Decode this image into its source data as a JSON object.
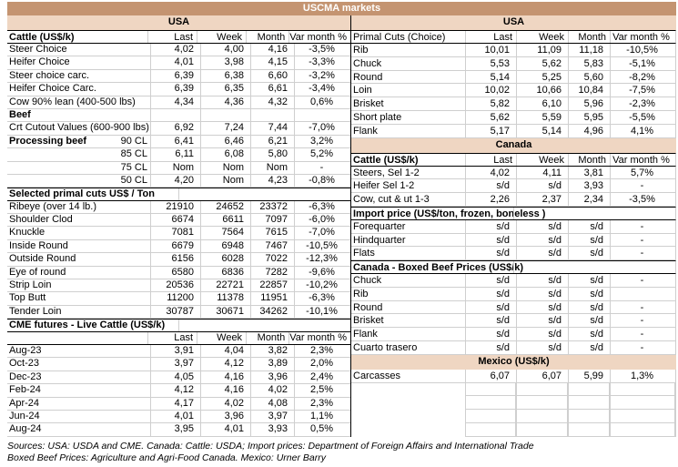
{
  "title": "USCMA markets",
  "colors": {
    "title_bg": "#C49471",
    "band_bg": "#EFD6C2",
    "grid": "#CFCFCF",
    "divider": "#000000"
  },
  "columns": [
    "Last",
    "Week",
    "Month",
    "Var month %"
  ],
  "left": {
    "rows": [
      {
        "t": "band",
        "label": "USA"
      },
      {
        "t": "colhead",
        "label": "Cattle (US$/k)",
        "bold": true,
        "cols": [
          "Last",
          "Week",
          "Month",
          "Var month %"
        ]
      },
      {
        "t": "data",
        "label": "Steer Choice",
        "v": [
          "4,02",
          "4,00",
          "4,16",
          "-3,5%"
        ]
      },
      {
        "t": "data",
        "label": "Heifer Choice",
        "v": [
          "4,01",
          "3,98",
          "4,15",
          "-3,3%"
        ]
      },
      {
        "t": "data",
        "label": "Steer choice carc.",
        "v": [
          "6,39",
          "6,38",
          "6,60",
          "-3,2%"
        ]
      },
      {
        "t": "data",
        "label": "Heifer Choice Carc.",
        "v": [
          "6,39",
          "6,35",
          "6,61",
          "-3,4%"
        ]
      },
      {
        "t": "data",
        "label": "Cow 90% lean (400-500 lbs)",
        "v": [
          "4,34",
          "4,36",
          "4,32",
          "0,6%"
        ]
      },
      {
        "t": "data",
        "label": "Beef",
        "bold": true,
        "v": [
          "",
          "",
          "",
          ""
        ]
      },
      {
        "t": "data",
        "label": "Crt Cutout Values (600-900 lbs)",
        "v": [
          "6,92",
          "7,24",
          "7,44",
          "-7,0%"
        ]
      },
      {
        "t": "data",
        "label": "Processing beef",
        "sublabel": "90 CL",
        "bold": true,
        "v": [
          "6,41",
          "6,46",
          "6,21",
          "3,2%"
        ]
      },
      {
        "t": "data",
        "label": "85 CL",
        "align": "right",
        "v": [
          "6,11",
          "6,08",
          "5,80",
          "5,2%"
        ]
      },
      {
        "t": "data",
        "label": "75 CL",
        "align": "right",
        "v": [
          "Nom",
          "Nom",
          "Nom",
          "-"
        ]
      },
      {
        "t": "data",
        "label": "50 CL",
        "align": "right",
        "v": [
          "4,20",
          "Nom",
          "4,23",
          "-0,8%"
        ]
      },
      {
        "t": "section",
        "label": "Selected primal cuts US$ / Ton"
      },
      {
        "t": "data",
        "label": "Ribeye (over 14 lb.)",
        "v": [
          "21910",
          "24652",
          "23372",
          "-6,3%"
        ]
      },
      {
        "t": "data",
        "label": "Shoulder Clod",
        "v": [
          "6674",
          "6611",
          "7097",
          "-6,0%"
        ]
      },
      {
        "t": "data",
        "label": "Knuckle",
        "v": [
          "7081",
          "7564",
          "7615",
          "-7,0%"
        ]
      },
      {
        "t": "data",
        "label": "Inside Round",
        "v": [
          "6679",
          "6948",
          "7467",
          "-10,5%"
        ]
      },
      {
        "t": "data",
        "label": "Outside Round",
        "v": [
          "6156",
          "6028",
          "7022",
          "-12,3%"
        ]
      },
      {
        "t": "data",
        "label": "Eye of round",
        "v": [
          "6580",
          "6836",
          "7282",
          "-9,6%"
        ]
      },
      {
        "t": "data",
        "label": "Strip Loin",
        "v": [
          "20536",
          "22721",
          "22857",
          "-10,2%"
        ]
      },
      {
        "t": "data",
        "label": "Top Butt",
        "v": [
          "11200",
          "11378",
          "11951",
          "-6,3%"
        ]
      },
      {
        "t": "data",
        "label": "Tender Loin",
        "v": [
          "30787",
          "30671",
          "34262",
          "-10,1%"
        ]
      },
      {
        "t": "section",
        "label": "CME futures - Live Cattle (US$/k)"
      },
      {
        "t": "subhead",
        "label": "",
        "cols": [
          "Last",
          "Week",
          "Month",
          "Var month %"
        ]
      },
      {
        "t": "data",
        "label": "Aug-23",
        "v": [
          "3,91",
          "4,04",
          "3,82",
          "2,3%"
        ]
      },
      {
        "t": "data",
        "label": "Oct-23",
        "v": [
          "3,97",
          "4,12",
          "3,89",
          "2,0%"
        ]
      },
      {
        "t": "data",
        "label": "Dec-23",
        "v": [
          "4,05",
          "4,16",
          "3,96",
          "2,4%"
        ]
      },
      {
        "t": "data",
        "label": "Feb-24",
        "v": [
          "4,12",
          "4,16",
          "4,02",
          "2,5%"
        ]
      },
      {
        "t": "data",
        "label": "Apr-24",
        "v": [
          "4,17",
          "4,02",
          "4,08",
          "2,3%"
        ]
      },
      {
        "t": "data",
        "label": "Jun-24",
        "v": [
          "4,01",
          "3,96",
          "3,97",
          "1,1%"
        ]
      },
      {
        "t": "data",
        "label": "Aug-24",
        "v": [
          "3,95",
          "4,01",
          "3,93",
          "0,5%"
        ]
      }
    ]
  },
  "right": {
    "rows": [
      {
        "t": "band",
        "label": "USA"
      },
      {
        "t": "colhead",
        "label": "Primal Cuts (Choice)",
        "bold": false,
        "cols": [
          "Last",
          "Week",
          "Month",
          "Var month %"
        ]
      },
      {
        "t": "data",
        "label": "Rib",
        "v": [
          "10,01",
          "11,09",
          "11,18",
          "-10,5%"
        ]
      },
      {
        "t": "data",
        "label": "Chuck",
        "v": [
          "5,53",
          "5,62",
          "5,83",
          "-5,1%"
        ]
      },
      {
        "t": "data",
        "label": "Round",
        "v": [
          "5,14",
          "5,25",
          "5,60",
          "-8,2%"
        ]
      },
      {
        "t": "data",
        "label": "Loin",
        "v": [
          "10,02",
          "10,66",
          "10,84",
          "-7,5%"
        ]
      },
      {
        "t": "data",
        "label": "Brisket",
        "v": [
          "5,82",
          "6,10",
          "5,96",
          "-2,3%"
        ]
      },
      {
        "t": "data",
        "label": "Short plate",
        "v": [
          "5,62",
          "5,59",
          "5,95",
          "-5,5%"
        ]
      },
      {
        "t": "data",
        "label": "Flank",
        "v": [
          "5,17",
          "5,14",
          "4,96",
          "4,1%"
        ]
      },
      {
        "t": "band",
        "label": "Canada"
      },
      {
        "t": "colhead",
        "label": "Cattle (US$/k)",
        "bold": true,
        "cols": [
          "Last",
          "Week",
          "Month",
          "Var month %"
        ]
      },
      {
        "t": "data",
        "label": "Steers, Sel 1-2",
        "v": [
          "4,02",
          "4,11",
          "3,81",
          "5,7%"
        ]
      },
      {
        "t": "data",
        "label": "Heifer Sel 1-2",
        "v": [
          "s/d",
          "s/d",
          "3,93",
          "-"
        ]
      },
      {
        "t": "data",
        "label": "Cow, cut & ut 1-3",
        "v": [
          "2,26",
          "2,37",
          "2,34",
          "-3,5%"
        ]
      },
      {
        "t": "section",
        "label": "Import price (US$/ton, frozen, boneless )"
      },
      {
        "t": "data",
        "label": "Forequarter",
        "v": [
          "s/d",
          "s/d",
          "s/d",
          "-"
        ]
      },
      {
        "t": "data",
        "label": "Hindquarter",
        "v": [
          "s/d",
          "s/d",
          "s/d",
          "-"
        ]
      },
      {
        "t": "data",
        "label": "Flats",
        "v": [
          "s/d",
          "s/d",
          "s/d",
          "-"
        ]
      },
      {
        "t": "section",
        "label": "Canada - Boxed Beef Prices (US$/k)"
      },
      {
        "t": "data",
        "label": "Chuck",
        "v": [
          "s/d",
          "s/d",
          "s/d",
          "-"
        ]
      },
      {
        "t": "data",
        "label": "Rib",
        "v": [
          "s/d",
          "s/d",
          "s/d",
          ""
        ]
      },
      {
        "t": "data",
        "label": "Round",
        "v": [
          "s/d",
          "s/d",
          "s/d",
          "-"
        ]
      },
      {
        "t": "data",
        "label": "Brisket",
        "v": [
          "s/d",
          "s/d",
          "s/d",
          "-"
        ]
      },
      {
        "t": "data",
        "label": "Flank",
        "v": [
          "s/d",
          "s/d",
          "s/d",
          "-"
        ]
      },
      {
        "t": "data",
        "label": "Cuarto trasero",
        "v": [
          "s/d",
          "s/d",
          "s/d",
          "-"
        ]
      },
      {
        "t": "band",
        "label": "Mexico (US$/k)"
      },
      {
        "t": "data",
        "label": "Carcasses",
        "v": [
          "6,07",
          "6,07",
          "5,99",
          "1,3%"
        ]
      },
      {
        "t": "empty"
      },
      {
        "t": "empty"
      },
      {
        "t": "empty"
      },
      {
        "t": "empty"
      }
    ]
  },
  "footer": {
    "line1": "Sources: USA: USDA and CME. Canada: Cattle: USDA; Import prices: Department of Foreign Affairs and International Trade",
    "line2": "Boxed Beef Prices: Agriculture and Agri-Food Canada. Mexico: Urner Barry"
  }
}
